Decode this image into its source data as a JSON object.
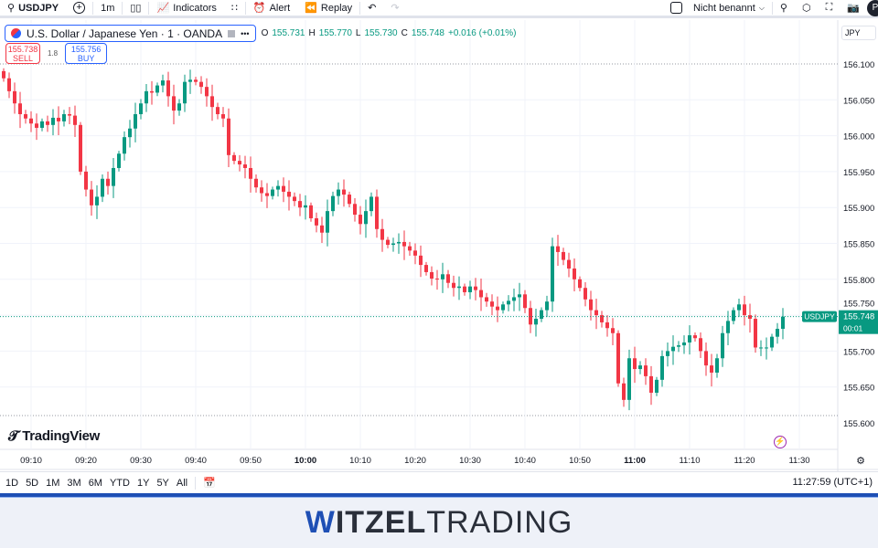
{
  "toolbar": {
    "symbol": "USDJPY",
    "interval": "1m",
    "indicators": "Indicators",
    "alert": "Alert",
    "replay": "Replay",
    "layout_name": "Nicht benannt",
    "avatar": "P"
  },
  "legend": {
    "title": "U.S. Dollar / Japanese Yen · 1 · OANDA",
    "o_label": "O",
    "o": "155.731",
    "h_label": "H",
    "h": "155.770",
    "l_label": "L",
    "l": "155.730",
    "c_label": "C",
    "c": "155.748",
    "change": "+0.016 (+0.01%)"
  },
  "trade": {
    "sell_price": "155.738",
    "sell": "SELL",
    "spread": "1.8",
    "buy_price": "155.756",
    "buy": "BUY"
  },
  "currency": "JPY",
  "brand": "TradingView",
  "colors": {
    "up": "#089981",
    "down": "#f23645",
    "accent": "#2962ff"
  },
  "chart_data": {
    "type": "candlestick",
    "symbol": "USDJPY",
    "interval_minutes": 1,
    "first_time": "09:05",
    "last_time": "11:27",
    "ylim": [
      155.6,
      156.1
    ],
    "y_ticks": [
      "156.100",
      "156.050",
      "156.000",
      "155.950",
      "155.900",
      "155.850",
      "155.800",
      "155.750",
      "155.700",
      "155.650",
      "155.600"
    ],
    "x_ticks": [
      "09:10",
      "09:20",
      "09:30",
      "09:40",
      "09:50",
      "10:00",
      "10:10",
      "10:20",
      "10:30",
      "10:40",
      "10:50",
      "11:00",
      "11:10",
      "11:20",
      "11:30"
    ],
    "bold_ticks": [
      "10:00",
      "11:00"
    ],
    "first_open": 156.09,
    "close": [
      156.08,
      156.062,
      156.045,
      156.03,
      156.024,
      156.017,
      156.011,
      156.02,
      156.015,
      156.025,
      156.02,
      156.03,
      156.028,
      156.015,
      155.95,
      155.925,
      155.903,
      155.915,
      155.94,
      155.93,
      155.955,
      155.975,
      155.998,
      156.01,
      156.03,
      156.045,
      156.062,
      156.06,
      156.07,
      156.077,
      156.055,
      156.035,
      156.045,
      156.075,
      156.078,
      156.075,
      156.068,
      156.055,
      156.04,
      156.03,
      156.024,
      155.973,
      155.965,
      155.96,
      155.955,
      155.94,
      155.928,
      155.92,
      155.916,
      155.925,
      155.93,
      155.922,
      155.915,
      155.909,
      155.9,
      155.903,
      155.885,
      155.875,
      155.865,
      155.895,
      155.916,
      155.925,
      155.918,
      155.905,
      155.89,
      155.877,
      155.895,
      155.915,
      155.87,
      155.855,
      155.848,
      155.85,
      155.852,
      155.846,
      155.84,
      155.833,
      155.82,
      155.81,
      155.801,
      155.8,
      155.807,
      155.795,
      155.788,
      155.79,
      155.782,
      155.79,
      155.785,
      155.775,
      155.769,
      155.762,
      155.757,
      155.765,
      155.77,
      155.775,
      155.779,
      155.76,
      155.737,
      155.745,
      155.757,
      155.769,
      155.846,
      155.838,
      155.827,
      155.815,
      155.8,
      155.788,
      155.772,
      155.757,
      155.75,
      155.74,
      155.732,
      155.725,
      155.655,
      155.632,
      155.69,
      155.675,
      155.68,
      155.665,
      155.642,
      155.66,
      155.693,
      155.7,
      155.706,
      155.708,
      155.712,
      155.722,
      155.718,
      155.7,
      155.68,
      155.67,
      155.69,
      155.725,
      155.742,
      155.757,
      155.765,
      155.75,
      155.745,
      155.705,
      155.705,
      155.705,
      155.72,
      155.731,
      155.748
    ],
    "last_price": "155.748",
    "countdown": "00:01",
    "last_label": "USDJPY"
  },
  "ranges": [
    "1D",
    "5D",
    "1M",
    "3M",
    "6M",
    "YTD",
    "1Y",
    "5Y",
    "All"
  ],
  "clock": "11:27:59 (UTC+1)",
  "footer": {
    "w": "W",
    "bold": "ITZEL",
    "light": "TRADING"
  }
}
